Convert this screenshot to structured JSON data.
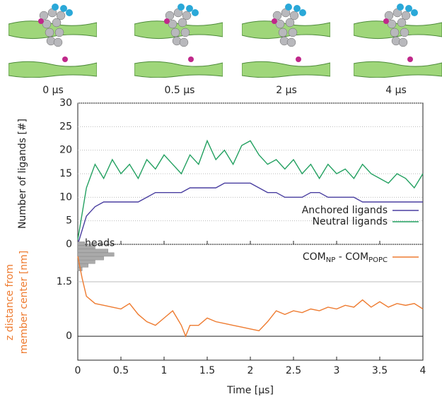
{
  "snapshots": [
    {
      "label": "0 µs"
    },
    {
      "label": "0.5 µs"
    },
    {
      "label": "2 µs"
    },
    {
      "label": "4 µs"
    }
  ],
  "chart_data": [
    {
      "type": "line",
      "ylabel": "Number of ligands [#]",
      "x": [
        0,
        0.1,
        0.2,
        0.3,
        0.4,
        0.5,
        0.6,
        0.7,
        0.8,
        0.9,
        1,
        1.1,
        1.2,
        1.3,
        1.4,
        1.5,
        1.6,
        1.7,
        1.8,
        1.9,
        2,
        2.1,
        2.2,
        2.3,
        2.4,
        2.5,
        2.6,
        2.7,
        2.8,
        2.9,
        3,
        3.1,
        3.2,
        3.3,
        3.4,
        3.5,
        3.6,
        3.7,
        3.8,
        3.9,
        4
      ],
      "series": [
        {
          "name": "Anchored ligands",
          "color": "#4a3fa0",
          "values": [
            0,
            6,
            8,
            9,
            9,
            9,
            9,
            9,
            10,
            11,
            11,
            11,
            11,
            12,
            12,
            12,
            12,
            13,
            13,
            13,
            13,
            12,
            11,
            11,
            10,
            10,
            10,
            11,
            11,
            10,
            10,
            10,
            10,
            9,
            9,
            9,
            9,
            9,
            9,
            9,
            9
          ]
        },
        {
          "name": "Neutral ligands",
          "color": "#22a060",
          "values": [
            1,
            12,
            17,
            14,
            18,
            15,
            17,
            14,
            18,
            16,
            19,
            17,
            15,
            19,
            17,
            22,
            18,
            20,
            17,
            21,
            22,
            19,
            17,
            18,
            16,
            18,
            15,
            17,
            14,
            17,
            15,
            16,
            14,
            17,
            15,
            14,
            13,
            15,
            14,
            12,
            15
          ]
        }
      ],
      "xlim": [
        0,
        4
      ],
      "xticks": [
        0,
        0.5,
        1,
        1.5,
        2,
        2.5,
        3,
        3.5,
        4
      ],
      "ylim": [
        0,
        30
      ],
      "yticks": [
        0,
        5,
        10,
        15,
        20,
        25,
        30
      ],
      "grid": true,
      "legend": "lower-right"
    },
    {
      "type": "line",
      "ylabel": [
        "z distance from",
        "member center [nm]"
      ],
      "xlabel": "Time [µs]",
      "series": [
        {
          "name": [
            "COM",
            "NP",
            " - COM",
            "POPC"
          ],
          "color": "#ee7b30",
          "x": [
            0,
            0.05,
            0.1,
            0.2,
            0.3,
            0.4,
            0.5,
            0.6,
            0.7,
            0.8,
            0.9,
            1,
            1.1,
            1.2,
            1.25,
            1.3,
            1.4,
            1.5,
            1.6,
            1.7,
            1.8,
            1.9,
            2,
            2.1,
            2.2,
            2.3,
            2.4,
            2.5,
            2.6,
            2.7,
            2.8,
            2.9,
            3,
            3.1,
            3.2,
            3.3,
            3.4,
            3.5,
            3.6,
            3.7,
            3.8,
            3.9,
            4
          ],
          "values": [
            2.2,
            1.6,
            1.1,
            0.9,
            0.85,
            0.8,
            0.75,
            0.9,
            0.6,
            0.4,
            0.3,
            0.5,
            0.7,
            0.3,
            0,
            0.3,
            0.3,
            0.5,
            0.4,
            0.35,
            0.3,
            0.25,
            0.2,
            0.15,
            0.4,
            0.7,
            0.6,
            0.7,
            0.65,
            0.75,
            0.7,
            0.8,
            0.75,
            0.85,
            0.8,
            1,
            0.8,
            0.95,
            0.8,
            0.9,
            0.85,
            0.9,
            0.75
          ]
        }
      ],
      "histogram": {
        "label": "heads",
        "color": "#aaaaaa",
        "bins": [
          1.8,
          1.9,
          2,
          2.1,
          2.2,
          2.3,
          2.4,
          2.5,
          2.6
        ],
        "counts": [
          0.05,
          0.12,
          0.2,
          0.3,
          0.42,
          0.35,
          0.2,
          0.08
        ]
      },
      "xlim": [
        0,
        4
      ],
      "xticks": [
        0,
        0.5,
        1,
        1.5,
        2,
        2.5,
        3,
        3.5,
        4
      ],
      "ylim": [
        -0.66,
        2.53
      ],
      "yticks": [
        0,
        1.5
      ],
      "grid": true,
      "legend": "upper-right"
    }
  ]
}
